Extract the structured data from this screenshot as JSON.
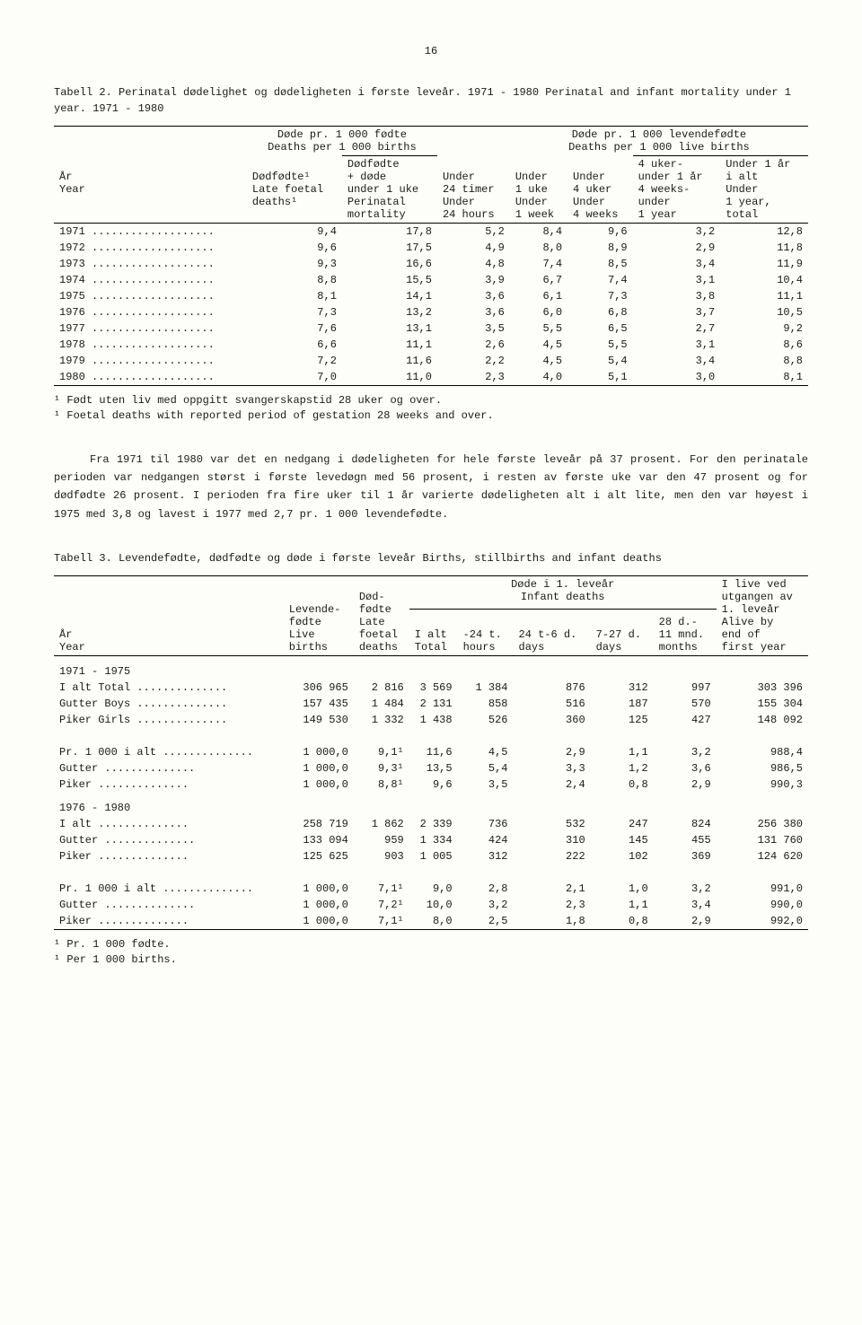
{
  "page_number": "16",
  "table2": {
    "caption": "Tabell 2.  Perinatal dødelighet og dødeligheten i første leveår.  1971 - 1980   Perinatal and infant mortality under 1 year.  1971 - 1980",
    "superhead_left": "Døde pr. 1 000 fødte",
    "superhead_left2": "Deaths per 1 000 births",
    "superhead_right": "Døde pr. 1 000 levendefødte",
    "superhead_right2": "Deaths per 1 000 live births",
    "colhead": {
      "c0a": "År",
      "c0b": "Year",
      "c1a": "Dødfødte¹",
      "c1b": "Late foetal",
      "c1c": "deaths¹",
      "c2a": "Dødfødte",
      "c2b": "+ døde",
      "c2c": "under 1 uke",
      "c2d": "Perinatal",
      "c2e": "mortality",
      "c3a": "Under",
      "c3b": "24 timer",
      "c3c": "Under",
      "c3d": "24 hours",
      "c4a": "Under",
      "c4b": "1 uke",
      "c4c": "Under",
      "c4d": "1 week",
      "c5a": "Under",
      "c5b": "4 uker",
      "c5c": "Under",
      "c5d": "4 weeks",
      "c6a": "4 uker-",
      "c6b": "under 1 år",
      "c6c": "4 weeks-",
      "c6d": "under",
      "c6e": "1 year",
      "c7a": "Under 1 år",
      "c7b": "i alt",
      "c7c": "Under",
      "c7d": "1 year,",
      "c7e": "total"
    },
    "rows": [
      {
        "y": "1971",
        "v": [
          "9,4",
          "17,8",
          "5,2",
          "8,4",
          "9,6",
          "3,2",
          "12,8"
        ]
      },
      {
        "y": "1972",
        "v": [
          "9,6",
          "17,5",
          "4,9",
          "8,0",
          "8,9",
          "2,9",
          "11,8"
        ]
      },
      {
        "y": "1973",
        "v": [
          "9,3",
          "16,6",
          "4,8",
          "7,4",
          "8,5",
          "3,4",
          "11,9"
        ]
      },
      {
        "y": "1974",
        "v": [
          "8,8",
          "15,5",
          "3,9",
          "6,7",
          "7,4",
          "3,1",
          "10,4"
        ]
      },
      {
        "y": "1975",
        "v": [
          "8,1",
          "14,1",
          "3,6",
          "6,1",
          "7,3",
          "3,8",
          "11,1"
        ]
      },
      {
        "y": "1976",
        "v": [
          "7,3",
          "13,2",
          "3,6",
          "6,0",
          "6,8",
          "3,7",
          "10,5"
        ]
      },
      {
        "y": "1977",
        "v": [
          "7,6",
          "13,1",
          "3,5",
          "5,5",
          "6,5",
          "2,7",
          "9,2"
        ]
      },
      {
        "y": "1978",
        "v": [
          "6,6",
          "11,1",
          "2,6",
          "4,5",
          "5,5",
          "3,1",
          "8,6"
        ]
      },
      {
        "y": "1979",
        "v": [
          "7,2",
          "11,6",
          "2,2",
          "4,5",
          "5,4",
          "3,4",
          "8,8"
        ]
      },
      {
        "y": "1980",
        "v": [
          "7,0",
          "11,0",
          "2,3",
          "4,0",
          "5,1",
          "3,0",
          "8,1"
        ]
      }
    ],
    "footnote1": "¹ Født uten liv med oppgitt svangerskapstid 28 uker og over.",
    "footnote2": "¹ Foetal deaths with reported period of gestation 28 weeks and over."
  },
  "paragraph": "Fra 1971 til 1980 var det en nedgang i dødeligheten for hele første leveår på 37 prosent.  For den perinatale perioden var nedgangen størst i første levedøgn med 56 prosent, i resten av første uke var den 47 prosent og for dødfødte 26 prosent.  I perioden fra fire uker til 1 år varierte dødeligheten alt i alt lite, men den var høyest i 1975 med 3,8 og lavest i 1977 med 2,7 pr. 1 000 levendefødte.",
  "table3": {
    "caption": "Tabell 3.  Levendefødte, dødfødte og døde i første leveår   Births, stillbirths and infant deaths",
    "colhead": {
      "c0a": "År",
      "c0b": "Year",
      "c1a": "Levende-",
      "c1b": "fødte",
      "c1c": "Live",
      "c1d": "births",
      "c2a": "Død-",
      "c2b": "fødte",
      "c2c": "Late",
      "c2d": "foetal",
      "c2e": "deaths",
      "span1a": "Døde i 1. leveår",
      "span1b": "Infant deaths",
      "c3a": "I alt",
      "c3b": "Total",
      "c4a": "-24 t.",
      "c4b": "hours",
      "c5a": "24 t-6 d.",
      "c5b": "days",
      "c6a": "7-27 d.",
      "c6b": "days",
      "c7a": "28 d.-",
      "c7b": "11 mnd.",
      "c7c": "months",
      "c8a": "I live ved",
      "c8b": "utgangen av",
      "c8c": "1. leveår",
      "c8d": "Alive by",
      "c8e": "end of",
      "c8f": "first year"
    },
    "sections": [
      {
        "title": "1971 - 1975",
        "rows": [
          {
            "l": "I alt  Total",
            "v": [
              "306 965",
              "2 816",
              "3 569",
              "1 384",
              "876",
              "312",
              "997",
              "303 396"
            ]
          },
          {
            "l": "Gutter  Boys",
            "v": [
              "157 435",
              "1 484",
              "2 131",
              "858",
              "516",
              "187",
              "570",
              "155 304"
            ]
          },
          {
            "l": "Piker  Girls",
            "v": [
              "149 530",
              "1 332",
              "1 438",
              "526",
              "360",
              "125",
              "427",
              "148 092"
            ]
          },
          {
            "spacer": true
          },
          {
            "l": "Pr. 1 000 i alt",
            "v": [
              "1 000,0",
              "9,1¹",
              "11,6",
              "4,5",
              "2,9",
              "1,1",
              "3,2",
              "988,4"
            ]
          },
          {
            "l": "Gutter",
            "v": [
              "1 000,0",
              "9,3¹",
              "13,5",
              "5,4",
              "3,3",
              "1,2",
              "3,6",
              "986,5"
            ]
          },
          {
            "l": "Piker",
            "v": [
              "1 000,0",
              "8,8¹",
              "9,6",
              "3,5",
              "2,4",
              "0,8",
              "2,9",
              "990,3"
            ]
          }
        ]
      },
      {
        "title": "1976 - 1980",
        "rows": [
          {
            "l": "I alt",
            "v": [
              "258 719",
              "1 862",
              "2 339",
              "736",
              "532",
              "247",
              "824",
              "256 380"
            ]
          },
          {
            "l": "Gutter",
            "v": [
              "133 094",
              "959",
              "1 334",
              "424",
              "310",
              "145",
              "455",
              "131 760"
            ]
          },
          {
            "l": "Piker",
            "v": [
              "125 625",
              "903",
              "1 005",
              "312",
              "222",
              "102",
              "369",
              "124 620"
            ]
          },
          {
            "spacer": true
          },
          {
            "l": "Pr. 1 000 i alt",
            "v": [
              "1 000,0",
              "7,1¹",
              "9,0",
              "2,8",
              "2,1",
              "1,0",
              "3,2",
              "991,0"
            ]
          },
          {
            "l": "Gutter",
            "v": [
              "1 000,0",
              "7,2¹",
              "10,0",
              "3,2",
              "2,3",
              "1,1",
              "3,4",
              "990,0"
            ]
          },
          {
            "l": "Piker",
            "v": [
              "1 000,0",
              "7,1¹",
              "8,0",
              "2,5",
              "1,8",
              "0,8",
              "2,9",
              "992,0"
            ]
          }
        ]
      }
    ],
    "footnote1": "¹ Pr. 1 000 fødte.",
    "footnote2": "¹ Per 1 000 births."
  }
}
